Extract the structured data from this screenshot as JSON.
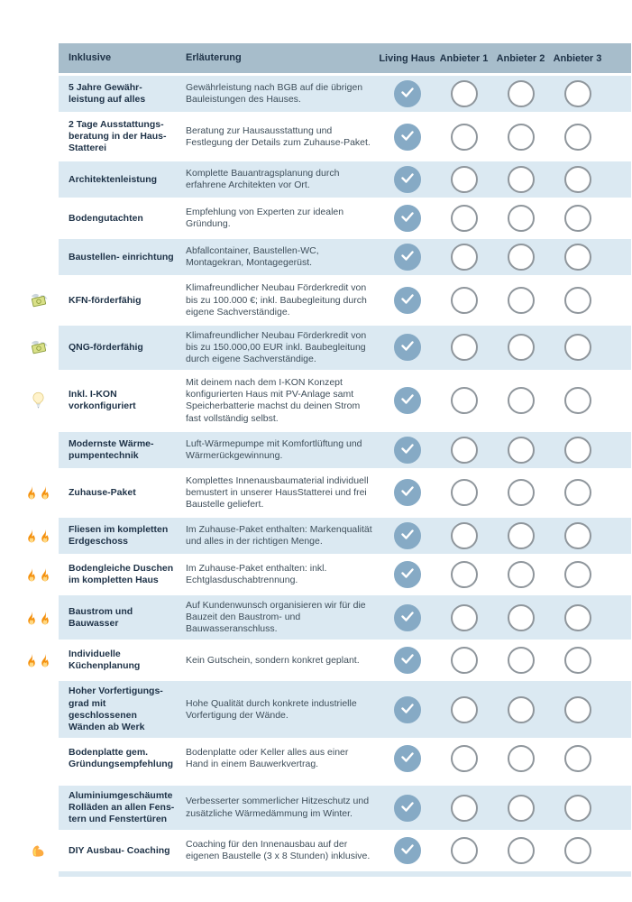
{
  "table": {
    "header": {
      "feature_label": "Inklusive",
      "description_label": "Erläuterung",
      "providers": [
        "Living Haus",
        "Anbieter 1",
        "Anbieter 2",
        "Anbieter 3"
      ]
    },
    "rows": [
      {
        "icon": null,
        "title": "5 Jahre Gewähr- leistung auf alles",
        "description": "Gewährleistung nach BGB auf die übrigen Bauleistungen des Hauses.",
        "checks": [
          true,
          false,
          false,
          false
        ]
      },
      {
        "icon": null,
        "title": "2 Tage Ausstattungs- beratung in der Haus- Statterei",
        "description": "Beratung zur Hausausstattung und Festlegung der Details zum Zuhause-Paket.",
        "checks": [
          true,
          false,
          false,
          false
        ]
      },
      {
        "icon": null,
        "title": "Architektenleistung",
        "description": "Komplette Bauantragsplanung durch erfahrene Architekten vor Ort.",
        "checks": [
          true,
          false,
          false,
          false
        ]
      },
      {
        "icon": null,
        "title": "Bodengutachten",
        "description": "Empfehlung von Experten zur idealen Gründung.",
        "checks": [
          true,
          false,
          false,
          false
        ]
      },
      {
        "icon": null,
        "title": "Baustellen- einrichtung",
        "description": "Abfallcontainer, Baustellen-WC, Montagekran, Montagegerüst.",
        "checks": [
          true,
          false,
          false,
          false
        ]
      },
      {
        "icon": "money-wings",
        "title": "KFN-förderfähig",
        "description": "Klimafreundlicher Neubau Förderkredit von bis zu 100.000 €; inkl. Baubegleitung durch eigene Sachverständige.",
        "checks": [
          true,
          false,
          false,
          false
        ]
      },
      {
        "icon": "money-wings",
        "title": "QNG-förderfähig",
        "description": "Klimafreundlicher Neubau Förderkredit von bis zu 150.000,00 EUR inkl. Baubegleitung durch eigene Sachverständige.",
        "checks": [
          true,
          false,
          false,
          false
        ]
      },
      {
        "icon": "lightbulb",
        "title": "Inkl. I-KON vorkonfiguriert",
        "description": "Mit deinem nach dem I-KON Konzept konfigurierten Haus mit PV-Anlage samt Speicherbatterie machst du deinen Strom fast vollständig selbst.",
        "checks": [
          true,
          false,
          false,
          false
        ]
      },
      {
        "icon": null,
        "title": "Modernste Wärme- pumpentechnik",
        "description": "Luft-Wärmepumpe mit Komfortlüftung und Wärmerückgewinnung.",
        "checks": [
          true,
          false,
          false,
          false
        ]
      },
      {
        "icon": "fire-double",
        "title": "Zuhause-Paket",
        "description": "Komplettes Innenausbaumaterial individuell bemustert in unserer HausStatterei und frei Baustelle geliefert.",
        "checks": [
          true,
          false,
          false,
          false
        ]
      },
      {
        "icon": "fire-double",
        "title": "Fliesen im kompletten Erdgeschoss",
        "description": "Im Zuhause-Paket enthalten: Markenqualität und alles in der richtigen Menge.",
        "checks": [
          true,
          false,
          false,
          false
        ]
      },
      {
        "icon": "fire-double",
        "title": "Bodengleiche Duschen im kompletten Haus",
        "description": "Im Zuhause-Paket enthalten: inkl. Echtglasduschabtrennung.",
        "checks": [
          true,
          false,
          false,
          false
        ]
      },
      {
        "icon": "fire-double",
        "title": "Baustrom und Bauwasser",
        "description": "Auf Kundenwunsch organisieren wir für die Bauzeit den Baustrom- und Bauwasseranschluss.",
        "checks": [
          true,
          false,
          false,
          false
        ]
      },
      {
        "icon": "fire-double",
        "title": "Individuelle Küchenplanung",
        "description": "Kein Gutschein, sondern konkret geplant.",
        "checks": [
          true,
          false,
          false,
          false
        ]
      },
      {
        "icon": null,
        "title": "Hoher Vorfertigungs- grad mit geschlossenen Wänden ab Werk",
        "description": "Hohe Qualität durch konkrete industrielle Vorfertigung der Wände.",
        "checks": [
          true,
          false,
          false,
          false
        ]
      },
      {
        "icon": null,
        "title": "Bodenplatte gem. Gründungsempfehlung",
        "description": "Bodenplatte oder Keller alles aus einer Hand in einem Bauwerkvertrag.",
        "checks": [
          true,
          false,
          false,
          false
        ]
      },
      {
        "icon": null,
        "title": "Aluminiumgeschäumte Rolläden an allen Fens- tern und Fenstertüren",
        "description": "Verbesserter sommerlicher Hitzeschutz und zusätzliche Wärmedämmung im Winter.",
        "checks": [
          true,
          false,
          false,
          false
        ],
        "gap_before": true
      },
      {
        "icon": "flexed-biceps",
        "title": "DIY Ausbau- Coaching",
        "description": "Coaching für den Innenausbau auf der eigenen Baustelle (3 x 8 Stunden) inklusive.",
        "checks": [
          true,
          false,
          false,
          false
        ]
      }
    ]
  },
  "colors": {
    "header_bg": "#a7bdcb",
    "row_blue": "#dbe9f2",
    "row_white": "#ffffff",
    "check_fill": "#86aac5",
    "check_mark": "#ffffff",
    "circle_border": "#8f969c",
    "title_text": "#1e3247",
    "body_text": "#3e4e5a"
  }
}
